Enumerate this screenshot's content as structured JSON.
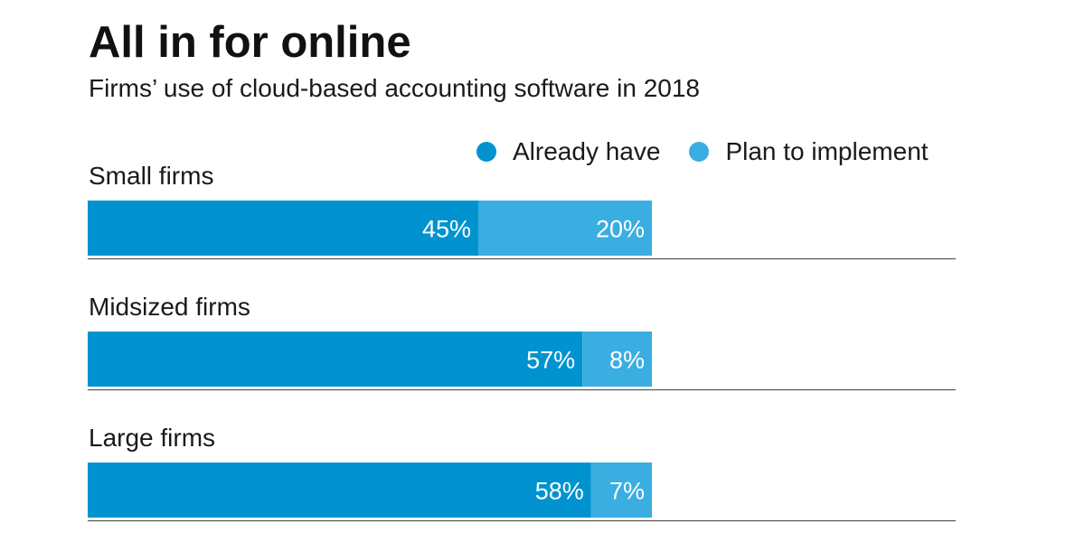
{
  "header": {
    "title": "All in for online",
    "subtitle": "Firms’ use of cloud-based accounting software in 2018"
  },
  "legend": [
    {
      "label": "Already have",
      "color": "#0093d0"
    },
    {
      "label": "Plan to implement",
      "color": "#3aaee0"
    }
  ],
  "chart_data": {
    "type": "bar",
    "orientation": "horizontal",
    "stacked": true,
    "title": "All in for online",
    "subtitle": "Firms’ use of cloud-based accounting software in 2018",
    "categories": [
      "Small firms",
      "Midsized firms",
      "Large firms"
    ],
    "series": [
      {
        "name": "Already have",
        "values": [
          45,
          57,
          58
        ],
        "labels": [
          "45%",
          "57%",
          "58%"
        ],
        "color": "#0093d0"
      },
      {
        "name": "Plan to implement",
        "values": [
          20,
          8,
          7
        ],
        "labels": [
          "20%",
          "8%",
          "7%"
        ],
        "color": "#3aaee0"
      }
    ],
    "unit": "%",
    "xlim": [
      0,
      100
    ],
    "grid": false,
    "legend_position": "top-right"
  }
}
